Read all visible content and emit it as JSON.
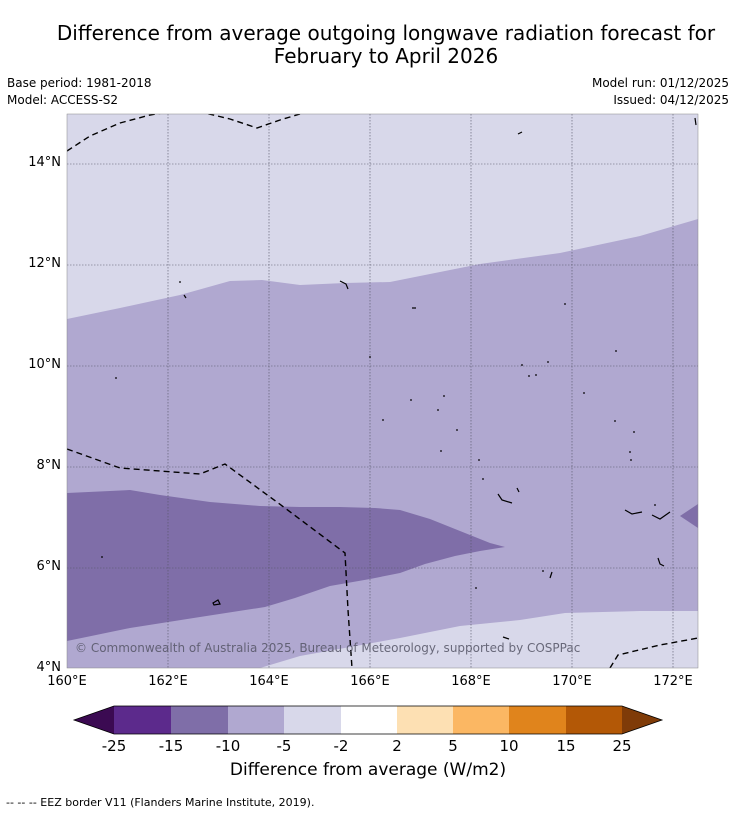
{
  "header": {
    "title_line1": "Difference from average outgoing longwave radiation forecast for",
    "title_line2": "February to April 2026",
    "base_period": "Base period: 1981-2018",
    "model": "Model: ACCESS-S2",
    "model_run": "Model run: 01/12/2025",
    "issued": "Issued: 04/12/2025"
  },
  "map": {
    "lat_labels": [
      "14°N",
      "12°N",
      "10°N",
      "8°N",
      "6°N",
      "4°N"
    ],
    "lon_labels": [
      "160°E",
      "162°E",
      "164°E",
      "166°E",
      "168°E",
      "170°E",
      "172°E"
    ],
    "lat_range": [
      4,
      15
    ],
    "lon_range": [
      160,
      172.5
    ],
    "copyright": "© Commonwealth of Australia 2025, Bureau of Meteorology, supported by COSPPac"
  },
  "colorbar": {
    "ticks": [
      "-25",
      "-15",
      "-10",
      "-5",
      "-2",
      "2",
      "5",
      "10",
      "15",
      "25"
    ],
    "colors": [
      "#3b0a52",
      "#5c2a8c",
      "#7f6ea8",
      "#b0a8d0",
      "#d8d8ea",
      "#ffffff",
      "#fde0b3",
      "#fbb763",
      "#e0841c",
      "#b35806",
      "#7f3b08"
    ],
    "title": "Difference from average (W/m2)"
  },
  "legend_note": "--  --  -- EEZ border V11 (Flanders Marine Institute, 2019)."
}
